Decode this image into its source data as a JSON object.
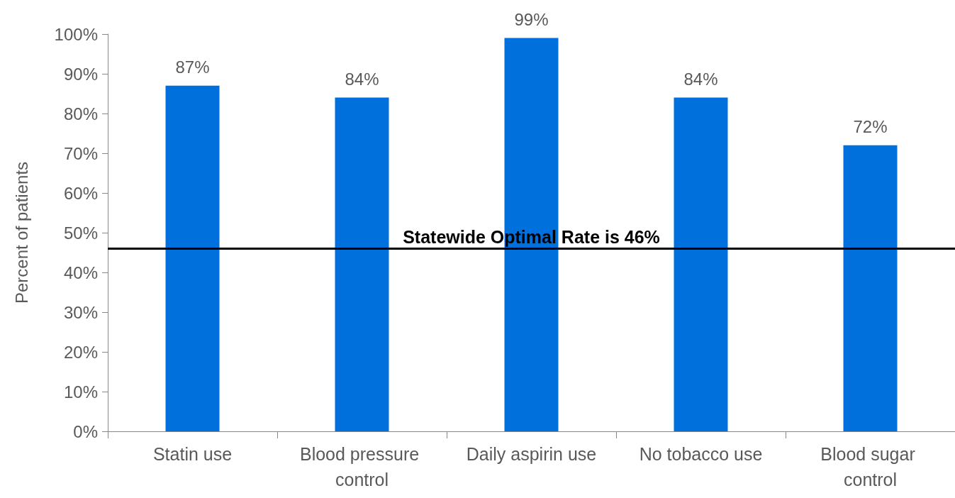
{
  "chart_data": {
    "type": "bar",
    "ylabel": "Percent of patients",
    "categories": [
      "Statin use",
      "Blood pressure control",
      "Daily aspirin use",
      "No tobacco use",
      "Blood sugar control"
    ],
    "values": [
      87,
      84,
      99,
      84,
      72
    ],
    "color": "#0070dd",
    "value_labels": [
      "87%",
      "84%",
      "99%",
      "84%",
      "72%"
    ],
    "ylim": [
      0,
      100
    ],
    "yticks": [
      {
        "value": 0,
        "label": "0%"
      },
      {
        "value": 10,
        "label": "10%"
      },
      {
        "value": 20,
        "label": "20%"
      },
      {
        "value": 30,
        "label": "30%"
      },
      {
        "value": 40,
        "label": "40%"
      },
      {
        "value": 50,
        "label": "50%"
      },
      {
        "value": 60,
        "label": "60%"
      },
      {
        "value": 70,
        "label": "70%"
      },
      {
        "value": 80,
        "label": "80%"
      },
      {
        "value": 90,
        "label": "90%"
      },
      {
        "value": 100,
        "label": "100%"
      }
    ],
    "ref_lines": [
      {
        "axis": "y",
        "value": 46,
        "label": "Statewide Optimal Rate is 46%",
        "color": "#000000",
        "line_style": "solid"
      }
    ],
    "grid": false
  }
}
